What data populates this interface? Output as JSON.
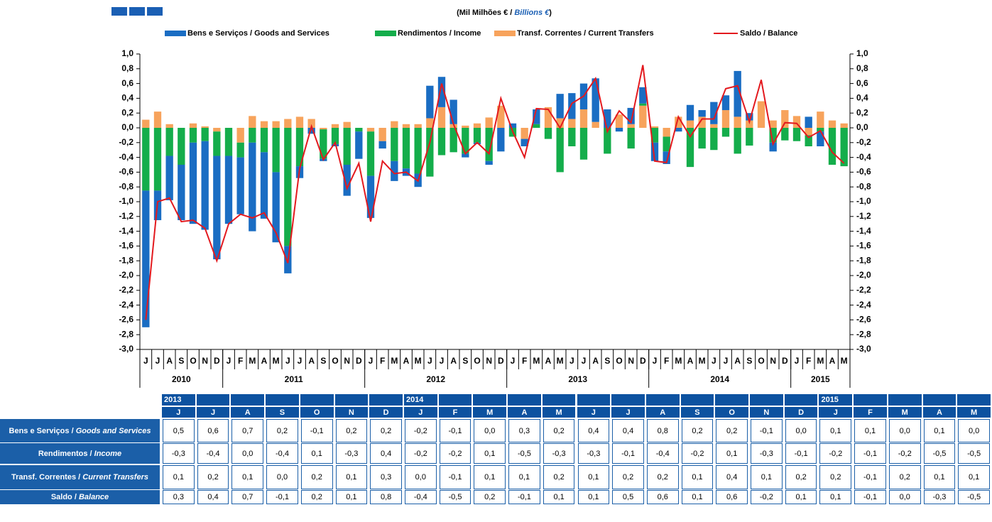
{
  "chart_data": {
    "type": "bar",
    "subtitle": [
      "(Mil Milhões € / ",
      "Billions €",
      ")"
    ],
    "categories": [
      "J",
      "J",
      "A",
      "S",
      "O",
      "N",
      "D",
      "J",
      "F",
      "M",
      "A",
      "M",
      "J",
      "J",
      "A",
      "S",
      "O",
      "N",
      "D",
      "J",
      "F",
      "M",
      "A",
      "M",
      "J",
      "J",
      "A",
      "S",
      "O",
      "N",
      "D",
      "J",
      "F",
      "M",
      "A",
      "M",
      "J",
      "J",
      "A",
      "S",
      "O",
      "N",
      "D",
      "J",
      "F",
      "M",
      "A",
      "M",
      "J",
      "J",
      "A",
      "S",
      "O",
      "N",
      "D",
      "J",
      "F",
      "M",
      "A",
      "M"
    ],
    "years": [
      "2010",
      "2011",
      "2012",
      "2013",
      "2014",
      "2015"
    ],
    "series": [
      {
        "name": "Bens e Serviços / Goods and Services",
        "type": "bar",
        "color": "#1a6dc3",
        "values": [
          -1.85,
          -0.4,
          -0.6,
          -0.75,
          -1.1,
          -1.2,
          -1.4,
          -0.92,
          -0.77,
          -1.2,
          -0.9,
          -0.95,
          -0.37,
          -0.16,
          -0.08,
          -0.03,
          -0.03,
          -0.42,
          -0.37,
          -0.57,
          -0.1,
          -0.27,
          -0.1,
          -0.18,
          0.44,
          0.41,
          0.33,
          -0.05,
          -0.02,
          -0.05,
          -0.32,
          0.06,
          -0.1,
          0.2,
          0.0,
          0.33,
          0.35,
          0.35,
          0.59,
          0.25,
          -0.05,
          0.22,
          0.22,
          -0.25,
          -0.17,
          -0.05,
          0.21,
          0.09,
          0.3,
          0.2,
          0.62,
          0.1,
          0.0,
          -0.12,
          0.0,
          0.0,
          0.15,
          -0.2,
          0.0,
          0.0
        ]
      },
      {
        "name": "Rendimentos / Income",
        "type": "bar",
        "color": "#14ad4b",
        "values": [
          -0.85,
          -0.85,
          -0.38,
          -0.5,
          -0.2,
          -0.18,
          -0.33,
          -0.38,
          -0.2,
          -0.2,
          -0.33,
          -0.6,
          -1.6,
          -0.52,
          0.0,
          -0.4,
          -0.22,
          -0.5,
          -0.05,
          -0.6,
          0.0,
          -0.45,
          -0.55,
          -0.62,
          -0.66,
          -0.37,
          -0.33,
          -0.35,
          -0.2,
          -0.45,
          0.0,
          -0.12,
          0.0,
          0.05,
          -0.15,
          -0.6,
          -0.25,
          -0.43,
          0.0,
          -0.35,
          0.0,
          -0.28,
          0.03,
          -0.2,
          -0.2,
          0.0,
          -0.53,
          -0.28,
          -0.3,
          -0.12,
          -0.35,
          -0.24,
          0.0,
          -0.2,
          -0.17,
          -0.18,
          -0.15,
          -0.05,
          -0.5,
          -0.52
        ]
      },
      {
        "name": "Transf. Correntes / Current Transfers",
        "type": "bar",
        "color": "#f7a35c",
        "values": [
          0.11,
          0.22,
          0.05,
          0.0,
          0.06,
          0.02,
          -0.05,
          0.0,
          -0.2,
          0.16,
          0.09,
          0.09,
          0.12,
          0.15,
          0.12,
          -0.02,
          0.05,
          0.08,
          0.0,
          -0.05,
          -0.18,
          0.09,
          0.05,
          0.05,
          0.13,
          0.28,
          0.05,
          0.03,
          0.06,
          0.14,
          0.3,
          0.0,
          -0.15,
          0.0,
          0.28,
          0.13,
          0.12,
          0.25,
          0.08,
          0.0,
          0.18,
          0.05,
          0.3,
          0.02,
          -0.12,
          0.15,
          0.1,
          0.15,
          0.05,
          0.24,
          0.15,
          0.1,
          0.36,
          0.1,
          0.24,
          0.16,
          -0.1,
          0.22,
          0.1,
          0.06
        ]
      },
      {
        "name": "Saldo / Balance",
        "type": "line",
        "color": "#e3191e",
        "values": [
          -2.6,
          -1.0,
          -0.95,
          -1.27,
          -1.25,
          -1.36,
          -1.8,
          -1.3,
          -1.17,
          -1.22,
          -1.15,
          -1.42,
          -1.83,
          -0.55,
          0.02,
          -0.43,
          -0.2,
          -0.82,
          -0.48,
          -1.27,
          -0.45,
          -0.62,
          -0.6,
          -0.72,
          -0.2,
          0.6,
          0.05,
          -0.35,
          -0.2,
          -0.35,
          0.4,
          -0.05,
          -0.4,
          0.26,
          0.25,
          0.0,
          0.33,
          0.43,
          0.67,
          -0.05,
          0.23,
          0.07,
          0.85,
          -0.45,
          -0.47,
          0.15,
          -0.12,
          0.12,
          0.12,
          0.53,
          0.57,
          0.08,
          0.65,
          -0.22,
          0.07,
          0.06,
          -0.13,
          -0.04,
          -0.33,
          -0.48
        ]
      }
    ],
    "ylim": [
      -3,
      1
    ],
    "yticks": [
      {
        "value": 1,
        "label": "1,0"
      },
      {
        "value": 0.8,
        "label": "0,8"
      },
      {
        "value": 0.6,
        "label": "0,6"
      },
      {
        "value": 0.4,
        "label": "0,4"
      },
      {
        "value": 0.2,
        "label": "0,2"
      },
      {
        "value": 0,
        "label": "0,0"
      },
      {
        "value": -0.2,
        "label": "-0,2"
      },
      {
        "value": -0.4,
        "label": "-0,4"
      },
      {
        "value": -0.6,
        "label": "-0,6"
      },
      {
        "value": -0.8,
        "label": "-0,8"
      },
      {
        "value": -1,
        "label": "-1,0"
      },
      {
        "value": -1.2,
        "label": "-1,2"
      },
      {
        "value": -1.4,
        "label": "-1,4"
      },
      {
        "value": -1.6,
        "label": "-1,6"
      },
      {
        "value": -1.8,
        "label": "-1,8"
      },
      {
        "value": -2,
        "label": "-2,0"
      },
      {
        "value": -2.2,
        "label": "-2,2"
      },
      {
        "value": -2.4,
        "label": "-2,4"
      },
      {
        "value": -2.6,
        "label": "-2,6"
      },
      {
        "value": -2.8,
        "label": "-2,8"
      },
      {
        "value": -3,
        "label": "-3,0"
      }
    ],
    "stacked": true,
    "legend": "top",
    "grid": false
  },
  "table": {
    "years": [
      "2013",
      null,
      null,
      null,
      null,
      null,
      null,
      "2014",
      null,
      null,
      null,
      null,
      null,
      null,
      null,
      null,
      null,
      null,
      null,
      "2015",
      null,
      null,
      null,
      null
    ],
    "months": [
      "J",
      "J",
      "A",
      "S",
      "O",
      "N",
      "D",
      "J",
      "F",
      "M",
      "A",
      "M",
      "J",
      "J",
      "A",
      "S",
      "O",
      "N",
      "D",
      "J",
      "F",
      "M",
      "A",
      "M"
    ],
    "rows": [
      {
        "label": "Bens e Serviços / ",
        "label_en": "Goods and Services",
        "values": [
          "0,5",
          "0,6",
          "0,7",
          "0,2",
          "-0,1",
          "0,2",
          "0,2",
          "-0,2",
          "-0,1",
          "0,0",
          "0,3",
          "0,2",
          "0,4",
          "0,4",
          "0,8",
          "0,2",
          "0,2",
          "-0,1",
          "0,0",
          "0,1",
          "0,1",
          "0,0",
          "0,1",
          "0,0"
        ]
      },
      {
        "label": "Rendimentos / ",
        "label_en": "Income",
        "values": [
          "-0,3",
          "-0,4",
          "0,0",
          "-0,4",
          "0,1",
          "-0,3",
          "0,4",
          "-0,2",
          "-0,2",
          "0,1",
          "-0,5",
          "-0,3",
          "-0,3",
          "-0,1",
          "-0,4",
          "-0,2",
          "0,1",
          "-0,3",
          "-0,1",
          "-0,2",
          "-0,1",
          "-0,2",
          "-0,5",
          "-0,5"
        ]
      },
      {
        "label": "Transf. Correntes / ",
        "label_en": "Current Transfers",
        "values": [
          "0,1",
          "0,2",
          "0,1",
          "0,0",
          "0,2",
          "0,1",
          "0,3",
          "0,0",
          "-0,1",
          "0,1",
          "0,1",
          "0,2",
          "0,1",
          "0,2",
          "0,2",
          "0,1",
          "0,4",
          "0,1",
          "0,2",
          "0,2",
          "-0,1",
          "0,2",
          "0,1",
          "0,1"
        ]
      },
      {
        "label": "Saldo / ",
        "label_en": "Balance",
        "values": [
          "0,3",
          "0,4",
          "0,7",
          "-0,1",
          "0,2",
          "0,1",
          "0,8",
          "-0,4",
          "-0,5",
          "0,2",
          "-0,1",
          "0,1",
          "0,1",
          "0,5",
          "0,6",
          "0,1",
          "0,6",
          "-0,2",
          "0,1",
          "0,1",
          "-0,1",
          "0,0",
          "-0,3",
          "-0,5"
        ]
      }
    ]
  }
}
